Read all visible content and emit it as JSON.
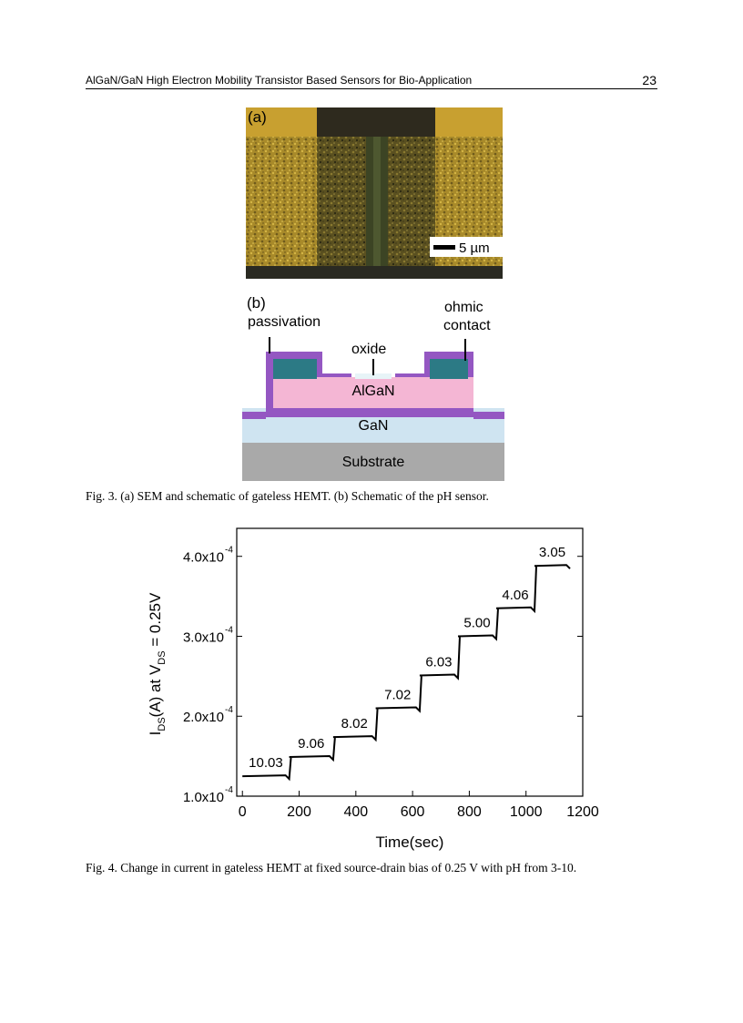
{
  "header": {
    "running_title": "AlGaN/GaN High Electron Mobility Transistor Based Sensors for Bio-Application",
    "page_number": "23"
  },
  "figure3": {
    "panel_a_label": "(a)",
    "scale_bar_label": "5 µm",
    "panel_b_label": "(b)",
    "label_passivation": "passivation",
    "label_ohmic_1": "ohmic",
    "label_ohmic_2": "contact",
    "label_oxide": "oxide",
    "layer_algan": "AlGaN",
    "layer_gan": "GaN",
    "layer_substrate": "Substrate",
    "caption": "Fig. 3. (a) SEM and schematic of gateless HEMT. (b) Schematic of the pH sensor."
  },
  "figure4": {
    "caption": "Fig. 4. Change in current in gateless HEMT at fixed source-drain bias of 0.25 V with pH from 3-10.",
    "chart_data": {
      "type": "line",
      "xlabel": "Time(sec)",
      "ylabel": "I_DS(A) at V_DS = 0.25V",
      "xlim": [
        -20,
        1200
      ],
      "ylim": [
        0.0001,
        0.000435
      ],
      "x_ticks": [
        "0",
        "200",
        "400",
        "600",
        "800",
        "1000",
        "1200"
      ],
      "y_ticks": [
        {
          "value": 0.0001,
          "mantissa": "1.0x10",
          "exponent": "-4"
        },
        {
          "value": 0.0002,
          "mantissa": "2.0x10",
          "exponent": "-4"
        },
        {
          "value": 0.0003,
          "mantissa": "3.0x10",
          "exponent": "-4"
        },
        {
          "value": 0.0004,
          "mantissa": "4.0x10",
          "exponent": "-4"
        }
      ],
      "steps": [
        {
          "pH": "10.03",
          "t_start": 0,
          "t_end": 165,
          "current": 0.000125
        },
        {
          "pH": "9.06",
          "t_start": 165,
          "t_end": 320,
          "current": 0.000149
        },
        {
          "pH": "8.02",
          "t_start": 320,
          "t_end": 470,
          "current": 0.000174
        },
        {
          "pH": "7.02",
          "t_start": 470,
          "t_end": 625,
          "current": 0.00021
        },
        {
          "pH": "6.03",
          "t_start": 625,
          "t_end": 760,
          "current": 0.000251
        },
        {
          "pH": "5.00",
          "t_start": 760,
          "t_end": 895,
          "current": 0.0003
        },
        {
          "pH": "4.06",
          "t_start": 895,
          "t_end": 1030,
          "current": 0.000335
        },
        {
          "pH": "3.05",
          "t_start": 1030,
          "t_end": 1155,
          "current": 0.000388
        }
      ]
    }
  }
}
